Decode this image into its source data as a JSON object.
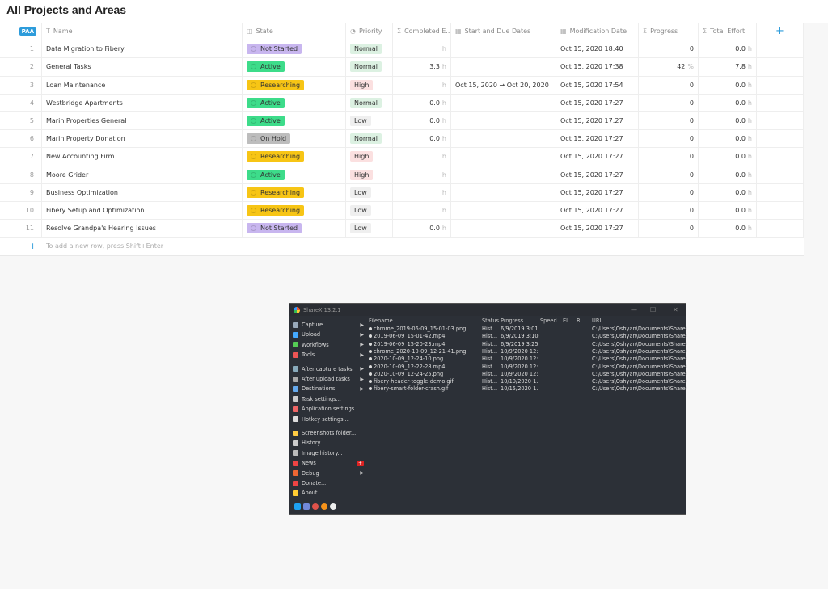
{
  "header": {
    "title": "All Projects and Areas"
  },
  "table": {
    "columns": [
      "PAA",
      "Name",
      "State",
      "Priority",
      "Completed E...",
      "Start and Due Dates",
      "Modification Date",
      "Progress",
      "Total Effort",
      "+"
    ],
    "rows": [
      {
        "number": "1",
        "name": "Data Migration to Fibery",
        "state": "Not Started",
        "priority": "Normal",
        "completed_unit": "h",
        "modified": "Oct 15, 2020 18:40",
        "progress": "0",
        "effort": "0.0",
        "effort_unit": "h"
      },
      {
        "number": "2",
        "name": "General Tasks",
        "state": "Active",
        "priority": "Normal",
        "completed": "3.3",
        "completed_unit": "h",
        "modified": "Oct 15, 2020 17:38",
        "progress": "42",
        "progress_unit": "%",
        "effort": "7.8",
        "effort_unit": "h"
      },
      {
        "number": "3",
        "name": "Loan Maintenance",
        "state": "Researching",
        "priority": "High",
        "completed_unit": "h",
        "dates": "Oct 15, 2020 → Oct 20, 2020",
        "modified": "Oct 15, 2020 17:54",
        "progress": "0",
        "effort": "0.0",
        "effort_unit": "h"
      },
      {
        "number": "4",
        "name": "Westbridge Apartments",
        "state": "Active",
        "priority": "Normal",
        "completed": "0.0",
        "completed_unit": "h",
        "modified": "Oct 15, 2020 17:27",
        "progress": "0",
        "effort": "0.0",
        "effort_unit": "h"
      },
      {
        "number": "5",
        "name": "Marin Properties General",
        "state": "Active",
        "priority": "Low",
        "completed": "0.0",
        "completed_unit": "h",
        "modified": "Oct 15, 2020 17:27",
        "progress": "0",
        "effort": "0.0",
        "effort_unit": "h"
      },
      {
        "number": "6",
        "name": "Marin Property Donation",
        "state": "On Hold",
        "priority": "Normal",
        "completed": "0.0",
        "completed_unit": "h",
        "modified": "Oct 15, 2020 17:27",
        "progress": "0",
        "effort": "0.0",
        "effort_unit": "h"
      },
      {
        "number": "7",
        "name": "New Accounting Firm",
        "state": "Researching",
        "priority": "High",
        "completed_unit": "h",
        "modified": "Oct 15, 2020 17:27",
        "progress": "0",
        "effort": "0.0",
        "effort_unit": "h"
      },
      {
        "number": "8",
        "name": "Moore Grider",
        "state": "Active",
        "priority": "High",
        "completed_unit": "h",
        "modified": "Oct 15, 2020 17:27",
        "progress": "0",
        "effort": "0.0",
        "effort_unit": "h"
      },
      {
        "number": "9",
        "name": "Business Optimization",
        "state": "Researching",
        "priority": "Low",
        "completed_unit": "h",
        "modified": "Oct 15, 2020 17:27",
        "progress": "0",
        "effort": "0.0",
        "effort_unit": "h"
      },
      {
        "number": "10",
        "name": "Fibery Setup and Optimization",
        "state": "Researching",
        "priority": "Low",
        "completed_unit": "h",
        "modified": "Oct 15, 2020 17:27",
        "progress": "0",
        "effort": "0.0",
        "effort_unit": "h"
      },
      {
        "number": "11",
        "name": "Resolve Grandpa's Hearing Issues",
        "state": "Not Started",
        "priority": "Low",
        "completed": "0.0",
        "completed_unit": "h",
        "modified": "Oct 15, 2020 17:27",
        "progress": "0",
        "effort": "0.0",
        "effort_unit": "h"
      }
    ],
    "add_row": {
      "button": "+",
      "hint": "To add a new row, press Shift+Enter"
    }
  },
  "sharex": {
    "title": "ShareX 13.2.1",
    "menu": [
      {
        "label": "Capture",
        "sub": true
      },
      {
        "label": "Upload",
        "sub": true
      },
      {
        "label": "Workflows",
        "sub": true
      },
      {
        "label": "Tools",
        "sub": true
      },
      {
        "label": "After capture tasks",
        "sub": true
      },
      {
        "label": "After upload tasks",
        "sub": true
      },
      {
        "label": "Destinations",
        "sub": true
      },
      {
        "label": "Task settings..."
      },
      {
        "label": "Application settings..."
      },
      {
        "label": "Hotkey settings..."
      },
      {
        "label": "Screenshots folder..."
      },
      {
        "label": "History..."
      },
      {
        "label": "Image history..."
      },
      {
        "label": "News",
        "badge": "+"
      },
      {
        "label": "Debug",
        "sub": true
      },
      {
        "label": "Donate..."
      },
      {
        "label": "About..."
      }
    ],
    "columns": [
      "Filename",
      "Status",
      "Progress",
      "Speed",
      "El...",
      "R...",
      "URL"
    ],
    "files": [
      [
        "chrome_2019-06-09_15-01-03.png",
        "Hist...",
        "6/9/2019 3:01...",
        "C:\\Users\\Oshyan\\Documents\\ShareX\\Sc..."
      ],
      [
        "2019-06-09_15-01-42.mp4",
        "Hist...",
        "6/9/2019 3:10...",
        "C:\\Users\\Oshyan\\Documents\\ShareX\\Sc..."
      ],
      [
        "2019-06-09_15-20-23.mp4",
        "Hist...",
        "6/9/2019 3:25...",
        "C:\\Users\\Oshyan\\Documents\\ShareX\\Sc..."
      ],
      [
        "chrome_2020-10-09_12-21-41.png",
        "Hist...",
        "10/9/2020 12:...",
        "C:\\Users\\Oshyan\\Documents\\ShareX\\Sc..."
      ],
      [
        "2020-10-09_12-24-10.png",
        "Hist...",
        "10/9/2020 12:...",
        "C:\\Users\\Oshyan\\Documents\\ShareX\\Sc..."
      ],
      [
        "2020-10-09_12-22-28.mp4",
        "Hist...",
        "10/9/2020 12:...",
        "C:\\Users\\Oshyan\\Documents\\ShareX\\Sc..."
      ],
      [
        "2020-10-09_12-24-25.png",
        "Hist...",
        "10/9/2020 12:...",
        "C:\\Users\\Oshyan\\Documents\\ShareX\\Sc..."
      ],
      [
        "fibery-header-toggle-demo.gif",
        "Hist...",
        "10/10/2020 1...",
        "C:\\Users\\Oshyan\\Documents\\ShareX\\Sc..."
      ],
      [
        "fibery-smart-folder-crash.gif",
        "Hist...",
        "10/15/2020 1...",
        "C:\\Users\\Oshyan\\Documents\\ShareX\\Sc..."
      ]
    ]
  }
}
